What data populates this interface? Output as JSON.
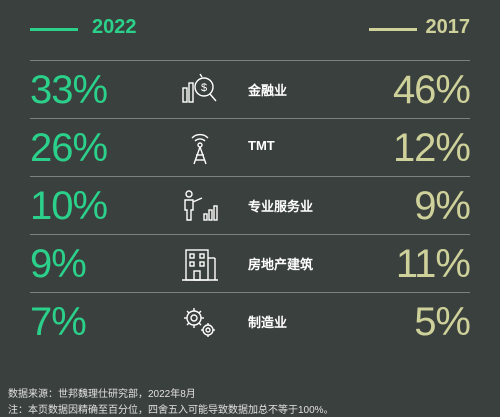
{
  "header": {
    "year_left": "2022",
    "year_right": "2017",
    "color_left": "#2bd18b",
    "color_right": "#cfd19a"
  },
  "rows": [
    {
      "label": "金融业",
      "value_2022": "33%",
      "value_2017": "46%",
      "icon": "finance-icon"
    },
    {
      "label": "TMT",
      "value_2022": "26%",
      "value_2017": "12%",
      "icon": "tower-icon"
    },
    {
      "label": "专业服务业",
      "value_2022": "10%",
      "value_2017": "9%",
      "icon": "presenter-icon"
    },
    {
      "label": "房地产建筑",
      "value_2022": "9%",
      "value_2017": "11%",
      "icon": "building-icon"
    },
    {
      "label": "制造业",
      "value_2022": "7%",
      "value_2017": "5%",
      "icon": "gears-icon"
    }
  ],
  "footer": {
    "source": "数据来源：世邦魏理仕研究部，2022年8月",
    "note": "注：本页数据因精确至百分位，四舍五入可能导致数据加总不等于100%。"
  }
}
